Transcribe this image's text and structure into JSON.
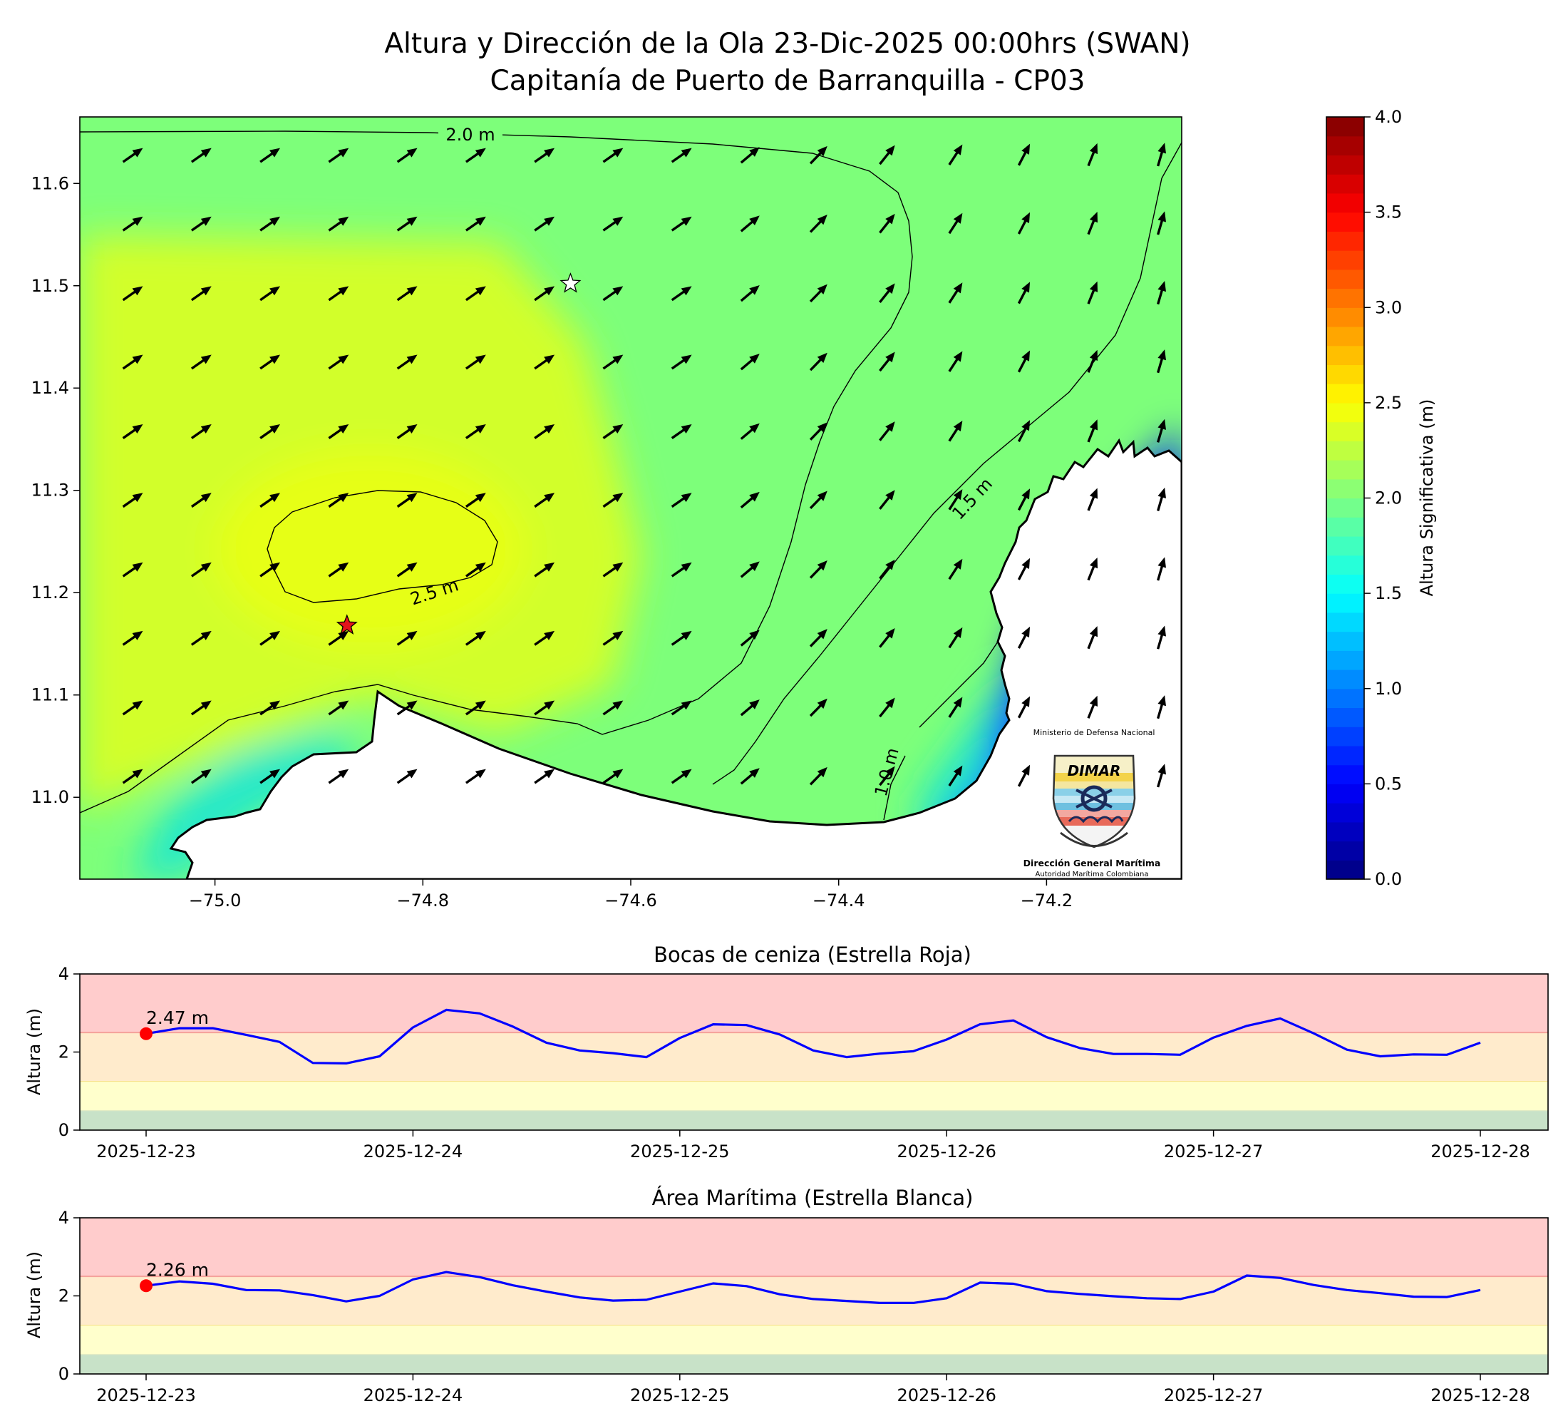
{
  "header": {
    "title_line1": "Altura y Dirección de la Ola 23-Dic-2025 00:00hrs (SWAN)",
    "title_line2": "Capitanía de Puerto de Barranquilla - CP03"
  },
  "map": {
    "xlim": [
      -75.13,
      -74.07
    ],
    "ylim": [
      10.92,
      11.665
    ],
    "x_ticks": [
      -75.0,
      -74.8,
      -74.6,
      -74.4,
      -74.2
    ],
    "x_tick_labels": [
      "−75.0",
      "−74.8",
      "−74.6",
      "−74.4",
      "−74.2"
    ],
    "y_ticks": [
      11.0,
      11.1,
      11.2,
      11.3,
      11.4,
      11.5,
      11.6
    ],
    "y_tick_labels": [
      "11.0",
      "11.1",
      "11.2",
      "11.3",
      "11.4",
      "11.5",
      "11.6"
    ],
    "contour_labels": [
      "2.0 m",
      "2.5 m",
      "1.5 m",
      "1.0 m"
    ],
    "red_star": {
      "lon": -74.873,
      "lat": 11.168,
      "color": "#e3131b"
    },
    "white_star": {
      "lon": -74.658,
      "lat": 11.502,
      "color": "#ffffff"
    },
    "arrow_lon": [
      -75.08,
      -75.014,
      -74.948,
      -74.882,
      -74.816,
      -74.75,
      -74.684,
      -74.618,
      -74.552,
      -74.486,
      -74.42,
      -74.354,
      -74.288,
      -74.222,
      -74.156,
      -74.09
    ],
    "arrow_lat": [
      11.02,
      11.087,
      11.155,
      11.222,
      11.29,
      11.357,
      11.425,
      11.492,
      11.56,
      11.627
    ]
  },
  "logo": {
    "ministry": "Ministerio de Defensa Nacional",
    "brand": "DIMAR",
    "org": "Dirección General Marítima",
    "tagline": "Autoridad Marítima Colombiana"
  },
  "colorbar": {
    "label": "Altura Significativa (m)",
    "range": [
      0.0,
      4.0
    ],
    "ticks": [
      0.0,
      0.5,
      1.0,
      1.5,
      2.0,
      2.5,
      3.0,
      3.5,
      4.0
    ],
    "tick_labels": [
      "0.0",
      "0.5",
      "1.0",
      "1.5",
      "2.0",
      "2.5",
      "3.0",
      "3.5",
      "4.0"
    ],
    "colormap": "jet"
  },
  "chart_data": [
    {
      "type": "line",
      "title": "Bocas de ceniza (Estrella Roja)",
      "ylabel": "Altura (m)",
      "ylim": [
        0,
        4
      ],
      "y_ticks": [
        0,
        2,
        4
      ],
      "x_tick_labels": [
        "2025-12-23",
        "2025-12-24",
        "2025-12-25",
        "2025-12-26",
        "2025-12-27",
        "2025-12-28"
      ],
      "x_start": "2025-12-23 00:00",
      "x_step_hours": 3,
      "threshold_bands": [
        {
          "from": 0.0,
          "to": 0.5,
          "color": "#c8e2c8"
        },
        {
          "from": 0.5,
          "to": 1.25,
          "color": "#ffffcc"
        },
        {
          "from": 1.25,
          "to": 2.5,
          "color": "#ffebcc"
        },
        {
          "from": 2.5,
          "to": 4.0,
          "color": "#ffcccc"
        }
      ],
      "series": [
        {
          "color": "#0000ff",
          "values": [
            2.47,
            2.61,
            2.61,
            2.44,
            2.26,
            1.72,
            1.71,
            1.89,
            2.63,
            3.08,
            2.99,
            2.65,
            2.24,
            2.04,
            1.97,
            1.87,
            2.36,
            2.71,
            2.69,
            2.45,
            2.04,
            1.87,
            1.96,
            2.02,
            2.32,
            2.71,
            2.81,
            2.38,
            2.1,
            1.95,
            1.95,
            1.93,
            2.37,
            2.67,
            2.86,
            2.48,
            2.06,
            1.89,
            1.94,
            1.93,
            2.24
          ]
        }
      ],
      "marker": {
        "value": 2.47,
        "label": "2.47 m",
        "color": "#ff0000"
      }
    },
    {
      "type": "line",
      "title": "Área Marítima (Estrella Blanca)",
      "ylabel": "Altura (m)",
      "ylim": [
        0,
        4
      ],
      "y_ticks": [
        0,
        2,
        4
      ],
      "x_tick_labels": [
        "2025-12-23",
        "2025-12-24",
        "2025-12-25",
        "2025-12-26",
        "2025-12-27",
        "2025-12-28"
      ],
      "x_start": "2025-12-23 00:00",
      "x_step_hours": 3,
      "threshold_bands": [
        {
          "from": 0.0,
          "to": 0.5,
          "color": "#c8e2c8"
        },
        {
          "from": 0.5,
          "to": 1.25,
          "color": "#ffffcc"
        },
        {
          "from": 1.25,
          "to": 2.5,
          "color": "#ffebcc"
        },
        {
          "from": 2.5,
          "to": 4.0,
          "color": "#ffcccc"
        }
      ],
      "series": [
        {
          "color": "#0000ff",
          "values": [
            2.26,
            2.37,
            2.31,
            2.15,
            2.14,
            2.02,
            1.86,
            2.0,
            2.42,
            2.61,
            2.48,
            2.27,
            2.11,
            1.96,
            1.88,
            1.9,
            2.11,
            2.32,
            2.25,
            2.04,
            1.92,
            1.87,
            1.82,
            1.82,
            1.94,
            2.34,
            2.31,
            2.12,
            2.05,
            1.99,
            1.94,
            1.92,
            2.11,
            2.52,
            2.46,
            2.28,
            2.15,
            2.07,
            1.98,
            1.97,
            2.15
          ]
        }
      ],
      "marker": {
        "value": 2.26,
        "label": "2.26 m",
        "color": "#ff0000"
      }
    }
  ]
}
